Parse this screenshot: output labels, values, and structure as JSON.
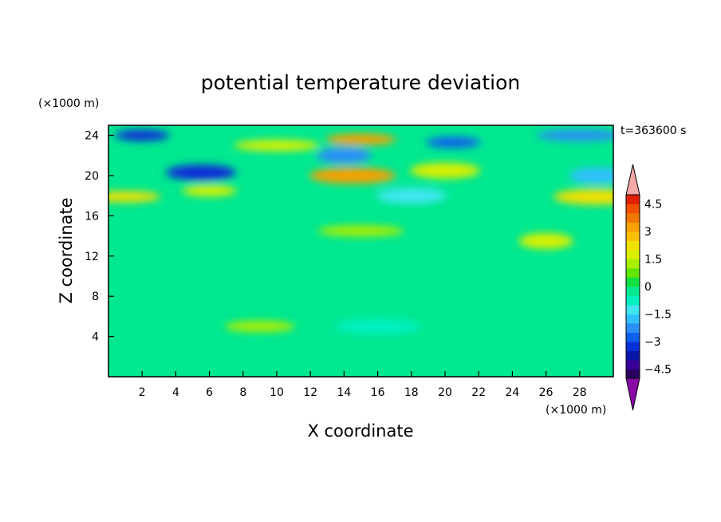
{
  "chart_data": {
    "type": "heatmap",
    "title": "potential temperature deviation",
    "xlabel": "X coordinate",
    "ylabel": "Z coordinate",
    "x_units": "(×1000 m)",
    "y_units": "(×1000 m)",
    "time_label": "t=363600 s",
    "xlim": [
      0,
      30
    ],
    "ylim": [
      0,
      25
    ],
    "x_ticks": [
      2,
      4,
      6,
      8,
      10,
      12,
      14,
      16,
      18,
      20,
      22,
      24,
      26,
      28
    ],
    "y_ticks": [
      4,
      8,
      12,
      16,
      20,
      24
    ],
    "colorbar": {
      "levels": [
        -5,
        -4.5,
        -4,
        -3.5,
        -3,
        -2.5,
        -2,
        -1.5,
        -1,
        -0.5,
        0,
        0.5,
        1,
        1.5,
        2,
        2.5,
        3,
        3.5,
        4,
        4.5,
        5
      ],
      "tick_labels": [
        "4.5",
        "3",
        "1.5",
        "0",
        "−1.5",
        "−3",
        "−4.5"
      ],
      "tick_values": [
        4.5,
        3,
        1.5,
        0,
        -1.5,
        -3,
        -4.5
      ],
      "colors": [
        "#2a0060",
        "#3a009a",
        "#0a14a8",
        "#0a2ed8",
        "#1060ee",
        "#2a90f6",
        "#30c0ff",
        "#40e6f0",
        "#00f0c0",
        "#00e890",
        "#10e040",
        "#60e600",
        "#a8ee00",
        "#d8f000",
        "#f0e000",
        "#f8c000",
        "#f8a000",
        "#f07800",
        "#f05000",
        "#e02000"
      ],
      "over_color": "#f4a8a8",
      "under_color": "#8a0aa8"
    },
    "features": [
      {
        "x": 2,
        "z": 24,
        "value": -3.5
      },
      {
        "x": 5.5,
        "z": 20.3,
        "value": -3.2
      },
      {
        "x": 10,
        "z": 23,
        "value": 1.5
      },
      {
        "x": 14,
        "z": 22,
        "value": -2.5
      },
      {
        "x": 15,
        "z": 23.6,
        "value": 3
      },
      {
        "x": 14.5,
        "z": 20,
        "value": 3.2
      },
      {
        "x": 20.5,
        "z": 23.3,
        "value": -3
      },
      {
        "x": 20,
        "z": 20.5,
        "value": 1.5
      },
      {
        "x": 28,
        "z": 24,
        "value": -2.5
      },
      {
        "x": 29,
        "z": 20,
        "value": -2
      },
      {
        "x": 1,
        "z": 17.9,
        "value": 2
      },
      {
        "x": 29,
        "z": 17.9,
        "value": 2
      },
      {
        "x": 6,
        "z": 18.5,
        "value": 1.5
      },
      {
        "x": 18,
        "z": 18,
        "value": -1.5
      },
      {
        "x": 15,
        "z": 14.5,
        "value": 1
      },
      {
        "x": 26,
        "z": 13.5,
        "value": 1.5
      },
      {
        "x": 9,
        "z": 5,
        "value": 1.2
      },
      {
        "x": 16,
        "z": 5,
        "value": -1
      }
    ]
  }
}
